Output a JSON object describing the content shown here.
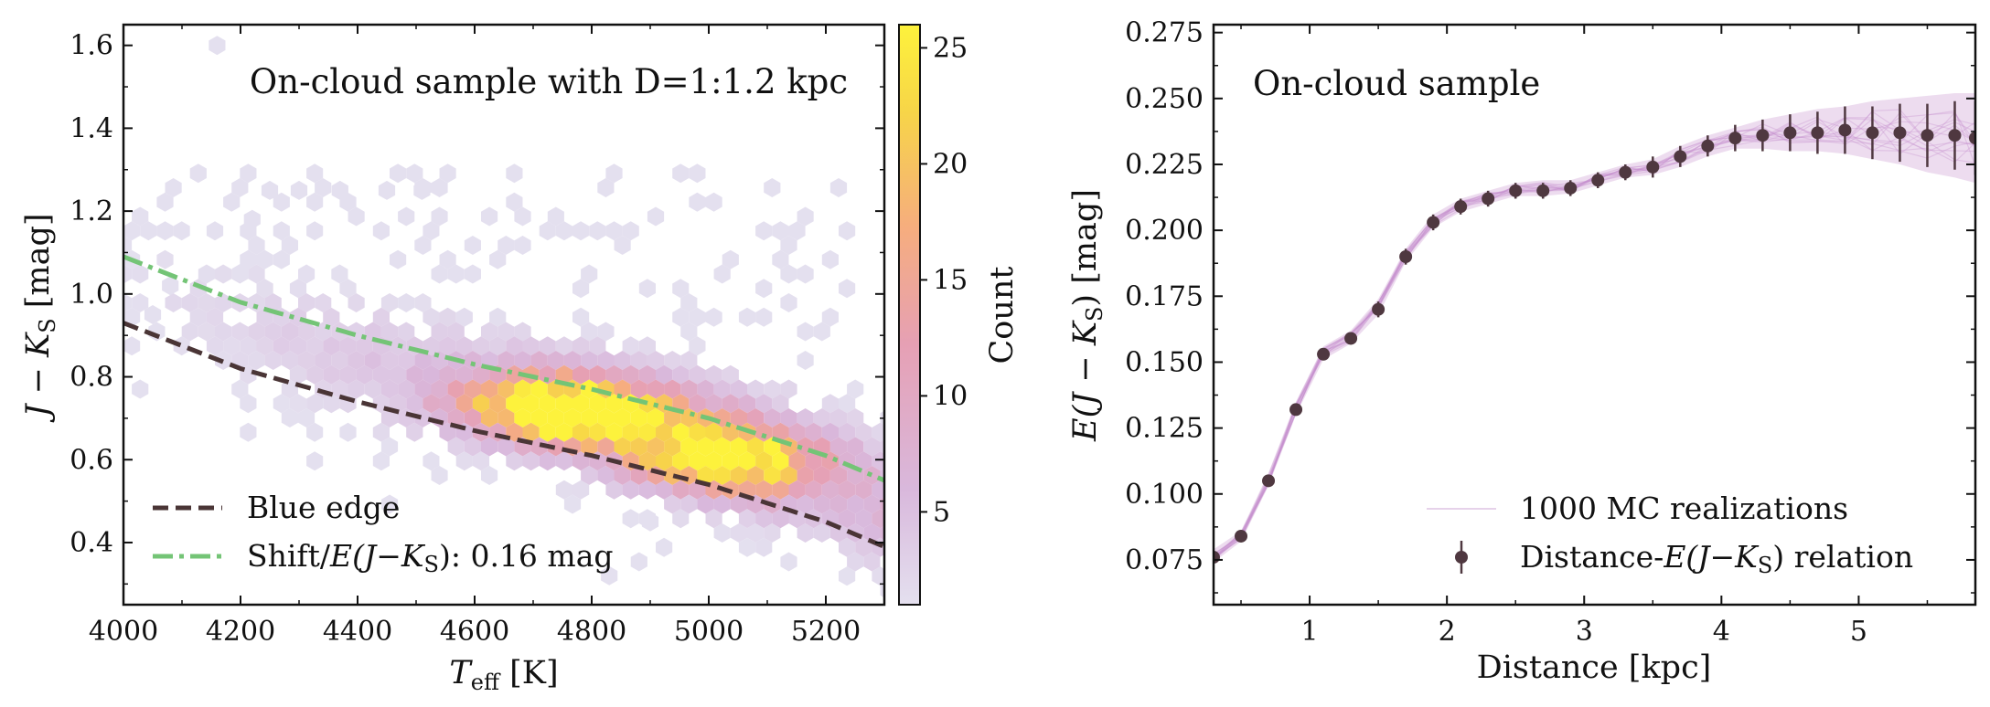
{
  "chart_data": [
    {
      "type": "hexbin",
      "title": "On-cloud sample with D=1:1.2 kpc",
      "xlabel": "T_eff [K]",
      "xlabel_main": "T",
      "xlabel_sub": "eff",
      "xlabel_unit": " [K]",
      "ylabel": "J − K_S [mag]",
      "ylabel_main": "J − K",
      "ylabel_sub": "S",
      "ylabel_unit": " [mag]",
      "xlim": [
        4000,
        5300
      ],
      "ylim": [
        0.25,
        1.65
      ],
      "xticks": [
        "4000",
        "4200",
        "4400",
        "4600",
        "4800",
        "5000",
        "5200"
      ],
      "xtick_values": [
        4000,
        4200,
        4400,
        4600,
        4800,
        5000,
        5200
      ],
      "yticks": [
        "0.4",
        "0.6",
        "0.8",
        "1.0",
        "1.2",
        "1.4",
        "1.6"
      ],
      "ytick_values": [
        0.4,
        0.6,
        0.8,
        1.0,
        1.2,
        1.4,
        1.6
      ],
      "colorbar": {
        "label": "Count",
        "range": [
          1,
          26
        ],
        "ticks": [
          "5",
          "10",
          "15",
          "20",
          "25"
        ],
        "tick_values": [
          5,
          10,
          15,
          20,
          25
        ],
        "colormap": [
          "#e4e0ef",
          "#d9b8dc",
          "#e6a0b4",
          "#f6ad7e",
          "#f7d548",
          "#fdf23c"
        ]
      },
      "density_model": {
        "description": "hexbin counts concentrated along the reddening sequence, peak near Teff 4800-5050 K",
        "peaks": [
          {
            "teff": 4820,
            "jk": 0.7,
            "count": 24
          },
          {
            "teff": 5030,
            "jk": 0.6,
            "count": 24
          },
          {
            "teff": 4700,
            "jk": 0.74,
            "count": 17
          }
        ]
      },
      "series": [
        {
          "name": "Blue edge",
          "style": "dashed",
          "color": "#4a3536",
          "x": [
            4000,
            4200,
            4400,
            4600,
            4800,
            5000,
            5200,
            5300
          ],
          "y": [
            0.93,
            0.82,
            0.74,
            0.67,
            0.61,
            0.54,
            0.45,
            0.39
          ]
        },
        {
          "name": "Shift/E(J−K_S): 0.16 mag",
          "name_main": "Shift/",
          "name_math": "E(J−K",
          "name_sub": "S",
          "name_tail": "): 0.16 mag",
          "style": "dashdot",
          "color": "#74c476",
          "x": [
            4000,
            4200,
            4400,
            4600,
            4800,
            5000,
            5200,
            5300
          ],
          "y": [
            1.09,
            0.98,
            0.9,
            0.83,
            0.77,
            0.7,
            0.61,
            0.55
          ]
        }
      ],
      "legend": {
        "location": "lower-left",
        "items": [
          "Blue edge",
          "Shift/E(J−K_S): 0.16 mag"
        ]
      }
    },
    {
      "type": "line",
      "title": "On-cloud sample",
      "xlabel": "Distance [kpc]",
      "ylabel": "E(J − K_S) [mag]",
      "ylabel_main": "E(J − K",
      "ylabel_sub": "S",
      "ylabel_tail": ") [mag]",
      "xlim": [
        0.3,
        5.85
      ],
      "ylim": [
        0.058,
        0.278
      ],
      "xticks": [
        "1",
        "2",
        "3",
        "4",
        "5"
      ],
      "xtick_values": [
        1,
        2,
        3,
        4,
        5
      ],
      "yticks": [
        "0.075",
        "0.100",
        "0.125",
        "0.150",
        "0.175",
        "0.200",
        "0.225",
        "0.250",
        "0.275"
      ],
      "ytick_values": [
        0.075,
        0.1,
        0.125,
        0.15,
        0.175,
        0.2,
        0.225,
        0.25,
        0.275
      ],
      "series": [
        {
          "name": "1000 MC realizations",
          "style": "band",
          "color": "#d6b2dc",
          "x": [
            0.3,
            0.5,
            0.7,
            0.9,
            1.1,
            1.3,
            1.5,
            1.7,
            1.9,
            2.1,
            2.3,
            2.5,
            2.7,
            2.9,
            3.1,
            3.3,
            3.5,
            3.7,
            3.9,
            4.1,
            4.3,
            4.5,
            4.7,
            4.9,
            5.1,
            5.3,
            5.5,
            5.7,
            5.85
          ],
          "y_low": [
            0.074,
            0.082,
            0.103,
            0.13,
            0.151,
            0.157,
            0.168,
            0.188,
            0.201,
            0.207,
            0.21,
            0.213,
            0.213,
            0.214,
            0.217,
            0.22,
            0.221,
            0.224,
            0.228,
            0.231,
            0.231,
            0.23,
            0.23,
            0.229,
            0.227,
            0.225,
            0.222,
            0.22,
            0.218
          ],
          "y_high": [
            0.079,
            0.086,
            0.108,
            0.135,
            0.156,
            0.162,
            0.174,
            0.193,
            0.206,
            0.212,
            0.215,
            0.218,
            0.219,
            0.219,
            0.222,
            0.225,
            0.227,
            0.232,
            0.236,
            0.239,
            0.242,
            0.244,
            0.246,
            0.247,
            0.249,
            0.25,
            0.251,
            0.252,
            0.252
          ]
        },
        {
          "name": "Distance-E(J−K_S) relation",
          "name_main": "Distance-",
          "name_math": "E(J−K",
          "name_sub": "S",
          "name_tail": ") relation",
          "style": "errorbar",
          "color": "#4f3840",
          "x": [
            0.3,
            0.5,
            0.7,
            0.9,
            1.1,
            1.3,
            1.5,
            1.7,
            1.9,
            2.1,
            2.3,
            2.5,
            2.7,
            2.9,
            3.1,
            3.3,
            3.5,
            3.7,
            3.9,
            4.1,
            4.3,
            4.5,
            4.7,
            4.9,
            5.1,
            5.3,
            5.5,
            5.7,
            5.85
          ],
          "y": [
            0.076,
            0.084,
            0.105,
            0.132,
            0.153,
            0.159,
            0.17,
            0.19,
            0.203,
            0.209,
            0.212,
            0.215,
            0.215,
            0.216,
            0.219,
            0.222,
            0.224,
            0.228,
            0.232,
            0.235,
            0.236,
            0.237,
            0.237,
            0.238,
            0.237,
            0.237,
            0.236,
            0.236,
            0.235
          ],
          "yerr": [
            0.002,
            0.002,
            0.002,
            0.002,
            0.002,
            0.002,
            0.003,
            0.003,
            0.003,
            0.003,
            0.003,
            0.003,
            0.003,
            0.003,
            0.003,
            0.003,
            0.004,
            0.004,
            0.004,
            0.005,
            0.006,
            0.007,
            0.008,
            0.009,
            0.01,
            0.011,
            0.012,
            0.013,
            0.014
          ]
        }
      ],
      "legend": {
        "location": "lower-right",
        "items": [
          "1000 MC realizations",
          "Distance-E(J−K_S) relation"
        ]
      }
    }
  ]
}
